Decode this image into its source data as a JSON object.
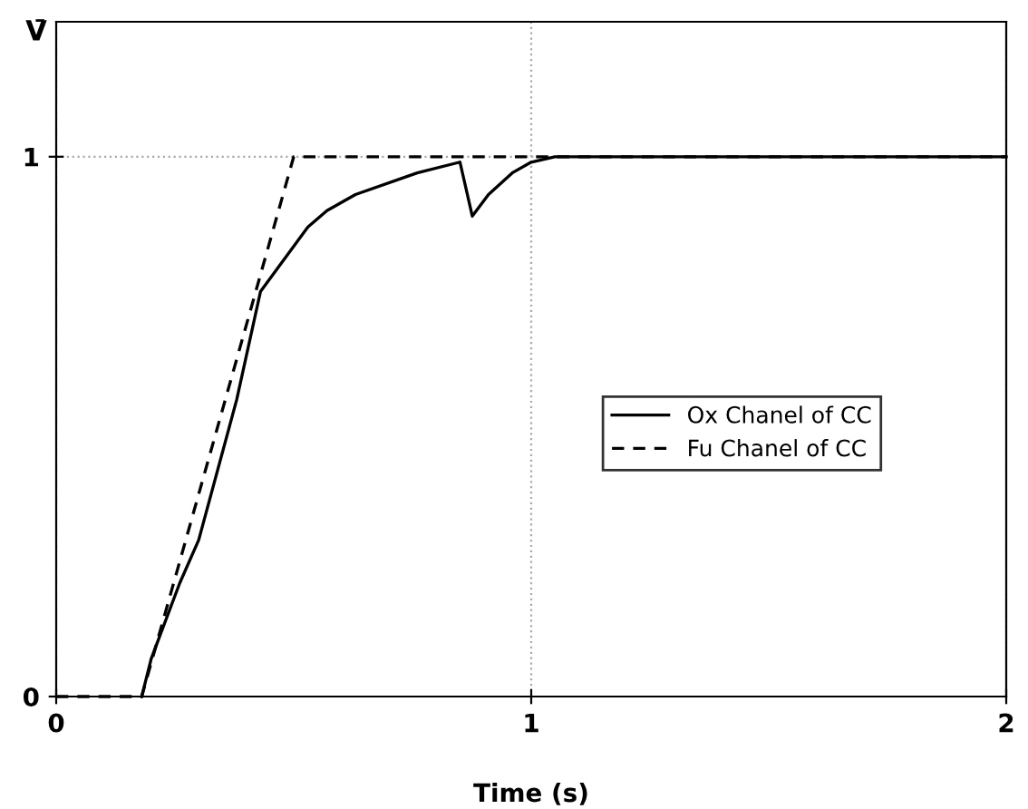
{
  "chart_data": {
    "type": "line",
    "xlabel": "Time (s)",
    "ylabel": "V̄",
    "xlim": [
      0,
      2
    ],
    "ylim": [
      0,
      1.25
    ],
    "xticks": [
      0,
      1,
      2
    ],
    "yticks": [
      0,
      1
    ],
    "grid": true,
    "legend": "right",
    "series": [
      {
        "name": "Ox Chanel of CC",
        "color": "#000000",
        "line_style": "solid",
        "x": [
          0.18,
          0.2,
          0.26,
          0.3,
          0.38,
          0.43,
          0.53,
          0.57,
          0.63,
          0.76,
          0.85,
          0.876,
          0.91,
          0.96,
          1.0,
          1.05,
          2.0
        ],
        "values": [
          0,
          0.07,
          0.21,
          0.29,
          0.55,
          0.75,
          0.87,
          0.9,
          0.93,
          0.97,
          0.99,
          0.89,
          0.93,
          0.97,
          0.99,
          1,
          1
        ]
      },
      {
        "name": "Fu Chanel of CC",
        "color": "#000000",
        "line_style": "dashed",
        "x": [
          0,
          0.18,
          0.5,
          2.0
        ],
        "values": [
          0,
          0,
          1,
          1
        ]
      }
    ]
  }
}
